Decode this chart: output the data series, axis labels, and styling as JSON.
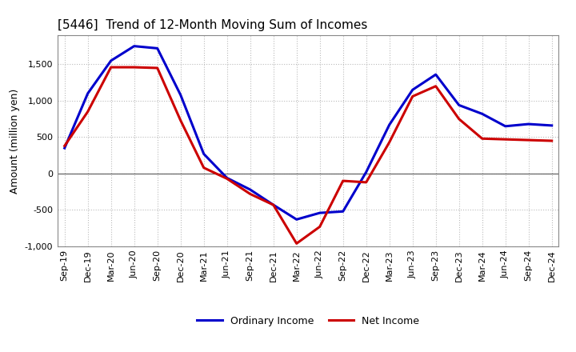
{
  "title": "[5446]  Trend of 12-Month Moving Sum of Incomes",
  "ylabel": "Amount (million yen)",
  "x_labels": [
    "Sep-19",
    "Dec-19",
    "Mar-20",
    "Jun-20",
    "Sep-20",
    "Dec-20",
    "Mar-21",
    "Jun-21",
    "Sep-21",
    "Dec-21",
    "Mar-22",
    "Jun-22",
    "Sep-22",
    "Dec-22",
    "Mar-23",
    "Jun-23",
    "Sep-23",
    "Dec-23",
    "Mar-24",
    "Jun-24",
    "Sep-24",
    "Dec-24"
  ],
  "ordinary_income": [
    350,
    1100,
    1550,
    1750,
    1720,
    1080,
    270,
    -60,
    -220,
    -430,
    -630,
    -540,
    -520,
    20,
    670,
    1150,
    1360,
    940,
    820,
    650,
    680,
    660
  ],
  "net_income": [
    380,
    850,
    1460,
    1460,
    1450,
    730,
    80,
    -70,
    -280,
    -430,
    -960,
    -730,
    -100,
    -120,
    430,
    1060,
    1200,
    750,
    480,
    470,
    460,
    450
  ],
  "ordinary_color": "#0000cc",
  "net_color": "#cc0000",
  "ylim": [
    -1000,
    1900
  ],
  "yticks": [
    -1000,
    -500,
    0,
    500,
    1000,
    1500
  ],
  "background_color": "#ffffff",
  "grid_color": "#bbbbbb",
  "legend_labels": [
    "Ordinary Income",
    "Net Income"
  ],
  "title_fontsize": 11,
  "ylabel_fontsize": 9,
  "tick_fontsize": 8
}
